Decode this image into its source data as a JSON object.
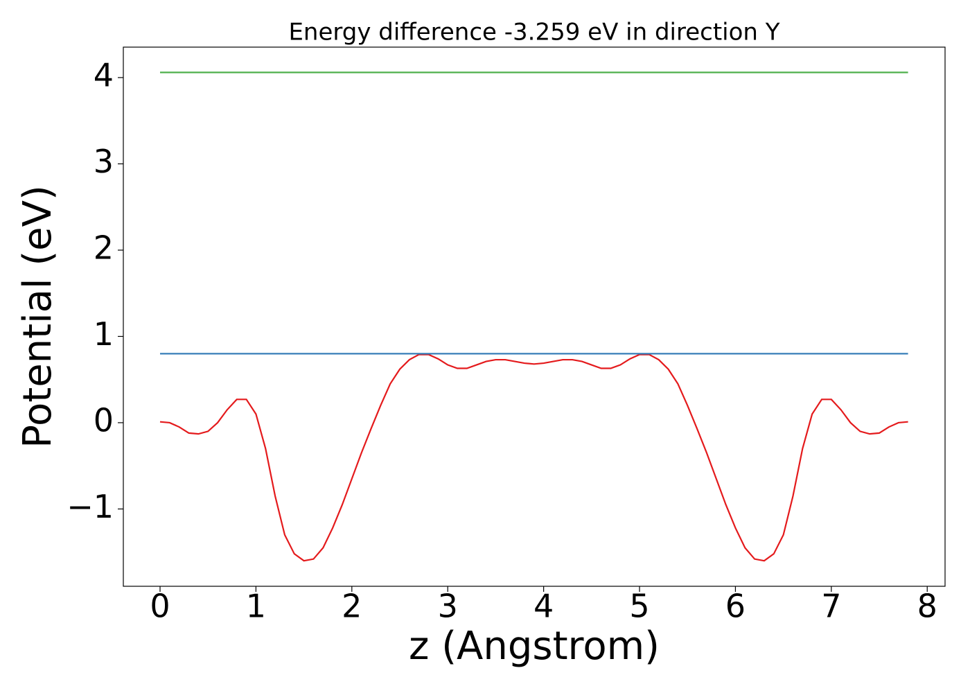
{
  "chart_data": {
    "type": "line",
    "title": "Energy difference -3.259 eV in direction Y",
    "x_label": "z (Angstrom)",
    "y_label": "Potential (eV)",
    "xlim": [
      -0.383,
      8.186
    ],
    "ylim": [
      -1.896,
      4.353
    ],
    "xticks": [
      0,
      1,
      2,
      3,
      4,
      5,
      6,
      7,
      8
    ],
    "yticks": [
      {
        "value": -1,
        "label": "−1"
      },
      0,
      1,
      2,
      3,
      4
    ],
    "grid": false,
    "series": [
      {
        "color": "#e41a1c",
        "x": [
          0,
          0.1,
          0.2,
          0.3,
          0.4,
          0.5,
          0.6,
          0.7,
          0.8,
          0.9,
          1.0,
          1.1,
          1.2,
          1.3,
          1.4,
          1.5,
          1.6,
          1.7,
          1.8,
          1.9,
          2.0,
          2.1,
          2.2,
          2.3,
          2.4,
          2.5,
          2.6,
          2.7,
          2.8,
          2.9,
          3.0,
          3.1,
          3.2,
          3.3,
          3.4,
          3.5,
          3.6,
          3.7,
          3.8,
          3.9,
          4.0,
          4.1,
          4.2,
          4.3,
          4.4,
          4.5,
          4.6,
          4.7,
          4.8,
          4.9,
          5.0,
          5.1,
          5.2,
          5.3,
          5.4,
          5.5,
          5.6,
          5.7,
          5.8,
          5.9,
          6.0,
          6.1,
          6.2,
          6.3,
          6.4,
          6.5,
          6.6,
          6.7,
          6.8,
          6.9,
          7.0,
          7.1,
          7.2,
          7.3,
          7.4,
          7.5,
          7.6,
          7.7,
          7.8
        ],
        "values": [
          0.01,
          0,
          -0.05,
          -0.12,
          -0.13,
          -0.1,
          0,
          0.15,
          0.27,
          0.27,
          0.1,
          -0.3,
          -0.85,
          -1.3,
          -1.52,
          -1.6,
          -1.58,
          -1.45,
          -1.22,
          -0.95,
          -0.65,
          -0.35,
          -0.07,
          0.2,
          0.45,
          0.62,
          0.73,
          0.79,
          0.79,
          0.74,
          0.67,
          0.63,
          0.63,
          0.67,
          0.71,
          0.73,
          0.73,
          0.71,
          0.69,
          0.68,
          0.69,
          0.71,
          0.73,
          0.73,
          0.71,
          0.67,
          0.63,
          0.63,
          0.67,
          0.74,
          0.79,
          0.79,
          0.73,
          0.62,
          0.45,
          0.2,
          -0.07,
          -0.35,
          -0.65,
          -0.95,
          -1.22,
          -1.45,
          -1.58,
          -1.6,
          -1.52,
          -1.3,
          -0.85,
          -0.3,
          0.1,
          0.27,
          0.27,
          0.15,
          0,
          -0.1,
          -0.13,
          -0.12,
          -0.05,
          0,
          0.01
        ]
      },
      {
        "color": "#377eb8",
        "x": [
          0,
          7.8
        ],
        "values": [
          0.8,
          0.8
        ]
      },
      {
        "color": "#4daf4a",
        "x": [
          0,
          7.8
        ],
        "values": [
          4.06,
          4.06
        ]
      }
    ]
  }
}
